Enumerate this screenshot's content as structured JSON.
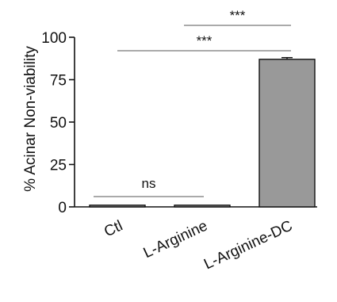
{
  "chart_data": {
    "type": "bar",
    "categories": [
      "Ctl",
      "L-Arginine",
      "L-Arginine-DC"
    ],
    "values": [
      1,
      1,
      87
    ],
    "errors": [
      0,
      0,
      1
    ],
    "bar_color": "#999999",
    "ylabel": "% Acinar Non-viability",
    "xlabel": "",
    "ylim": [
      0,
      100
    ],
    "yticks": [
      0,
      25,
      50,
      75,
      100
    ],
    "significance": [
      {
        "from": 0,
        "to": 1,
        "label": "ns"
      },
      {
        "from": 0,
        "to": 2,
        "label": "***"
      },
      {
        "from": 1,
        "to": 2,
        "label": "***"
      }
    ]
  }
}
